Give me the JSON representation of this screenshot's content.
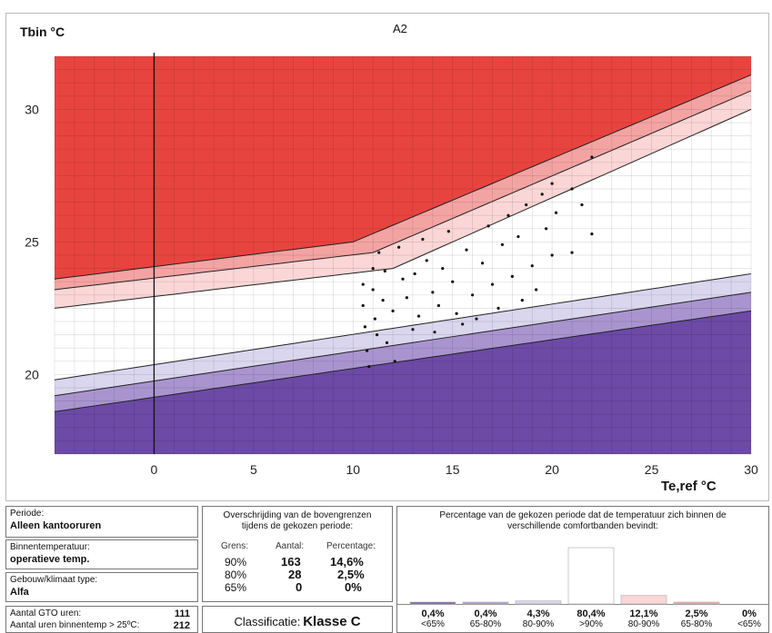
{
  "chart_data": {
    "type": "scatter",
    "title": "A2",
    "ylabel": "Tbin °C",
    "xlabel": "Te,ref °C",
    "xlim": [
      -5,
      30
    ],
    "ylim": [
      17,
      32
    ],
    "xticks": [
      0,
      5,
      10,
      15,
      20,
      25,
      30
    ],
    "xtick_labels": [
      "0",
      "5",
      "10",
      "15",
      "20",
      "25",
      "30"
    ],
    "yticks": [
      20,
      25,
      30
    ],
    "grid": true,
    "comfort_band_lines": {
      "upper": [
        {
          "name": "65%",
          "points": [
            [
              -5,
              23.6
            ],
            [
              10,
              25.0
            ],
            [
              30,
              31.3
            ]
          ]
        },
        {
          "name": "80%",
          "points": [
            [
              -5,
              23.2
            ],
            [
              11,
              24.6
            ],
            [
              30,
              30.7
            ]
          ]
        },
        {
          "name": "90%",
          "points": [
            [
              -5,
              22.5
            ],
            [
              12,
              24.0
            ],
            [
              30,
              30.0
            ]
          ]
        }
      ],
      "lower": [
        {
          "name": "90%",
          "points": [
            [
              -5,
              19.8
            ],
            [
              30,
              23.8
            ]
          ]
        },
        {
          "name": "80%",
          "points": [
            [
              -5,
              19.2
            ],
            [
              30,
              23.1
            ]
          ]
        },
        {
          "name": "65%",
          "points": [
            [
              -5,
              18.6
            ],
            [
              30,
              22.4
            ]
          ]
        }
      ]
    },
    "band_colors": {
      "hot": "#e8443f",
      "hot_80": "#f4a3a3",
      "hot_90": "#fbd6d6",
      "comfort": "#ffffff",
      "cold_90": "#d9d6ee",
      "cold_80": "#a994cf",
      "cold": "#6c4aa6"
    },
    "series": [
      {
        "points": [
          [
            10.5,
            23.4
          ],
          [
            10.5,
            22.6
          ],
          [
            10.6,
            21.8
          ],
          [
            10.7,
            20.9
          ],
          [
            10.8,
            20.3
          ],
          [
            11.0,
            24.0
          ],
          [
            11.0,
            23.2
          ],
          [
            11.1,
            22.1
          ],
          [
            11.2,
            21.5
          ],
          [
            11.3,
            24.6
          ],
          [
            11.5,
            22.8
          ],
          [
            11.6,
            23.9
          ],
          [
            11.7,
            21.2
          ],
          [
            12.0,
            22.4
          ],
          [
            12.1,
            20.5
          ],
          [
            12.3,
            24.8
          ],
          [
            12.5,
            23.6
          ],
          [
            12.7,
            22.9
          ],
          [
            13.0,
            21.7
          ],
          [
            13.1,
            23.8
          ],
          [
            13.3,
            22.2
          ],
          [
            13.5,
            25.1
          ],
          [
            13.7,
            24.3
          ],
          [
            14.0,
            23.1
          ],
          [
            14.1,
            21.6
          ],
          [
            14.3,
            22.6
          ],
          [
            14.5,
            24.0
          ],
          [
            14.8,
            25.4
          ],
          [
            15.0,
            23.5
          ],
          [
            15.2,
            22.3
          ],
          [
            15.5,
            21.9
          ],
          [
            15.7,
            24.7
          ],
          [
            16.0,
            23.0
          ],
          [
            16.2,
            22.1
          ],
          [
            16.5,
            24.2
          ],
          [
            16.8,
            25.6
          ],
          [
            17.0,
            23.4
          ],
          [
            17.3,
            22.5
          ],
          [
            17.5,
            24.9
          ],
          [
            17.8,
            26.0
          ],
          [
            18.0,
            23.7
          ],
          [
            18.3,
            25.2
          ],
          [
            18.5,
            22.8
          ],
          [
            18.7,
            26.4
          ],
          [
            19.0,
            24.1
          ],
          [
            19.2,
            23.2
          ],
          [
            19.5,
            26.8
          ],
          [
            19.7,
            25.5
          ],
          [
            20.0,
            27.2
          ],
          [
            20.0,
            24.5
          ],
          [
            20.2,
            26.1
          ],
          [
            21.0,
            27.0
          ],
          [
            21.0,
            24.6
          ],
          [
            21.5,
            26.4
          ],
          [
            22.0,
            28.2
          ],
          [
            22.0,
            25.3
          ]
        ]
      }
    ]
  },
  "bottom": {
    "periode": {
      "label": "Periode:",
      "value": "Alleen kantooruren"
    },
    "binnen": {
      "label": "Binnentemperatuur:",
      "value": "operatieve temp."
    },
    "gebouw": {
      "label": "Gebouw/klimaat type:",
      "value": "Alfa"
    },
    "gto": {
      "label": "Aantal GTO uren:",
      "value": "111"
    },
    "uren25": {
      "label": "Aantal uren binnentemp > 25ºC:",
      "value": "212"
    },
    "overschrijding": {
      "title": "Overschrijding van de bovengrenzen tijdens de gekozen periode:",
      "headers": [
        "Grens:",
        "Aantal:",
        "Percentage:"
      ],
      "rows": [
        {
          "grens": "90%",
          "aantal": "163",
          "pct": "14,6%"
        },
        {
          "grens": "80%",
          "aantal": "28",
          "pct": "2,5%"
        },
        {
          "grens": "65%",
          "aantal": "0",
          "pct": "0%"
        }
      ]
    },
    "classificatie": {
      "label": "Classificatie:",
      "value": "Klasse C"
    },
    "percentage": {
      "title": "Percentage van de gekozen periode dat de temperatuur zich binnen de verschillende comfortbanden bevindt:",
      "bars": [
        {
          "value": "0,4%",
          "label": "<65%",
          "frac": 0.004,
          "color": "#6c4aa6"
        },
        {
          "value": "0,4%",
          "label": "65-80%",
          "frac": 0.004,
          "color": "#a994cf"
        },
        {
          "value": "4,3%",
          "label": "80-90%",
          "frac": 0.043,
          "color": "#d9d6ee"
        },
        {
          "value": "80,4%",
          "label": ">90%",
          "frac": 0.804,
          "color": "#ffffff"
        },
        {
          "value": "12,1%",
          "label": "80-90%",
          "frac": 0.121,
          "color": "#fbd6d6"
        },
        {
          "value": "2,5%",
          "label": "65-80%",
          "frac": 0.025,
          "color": "#f4a3a3"
        },
        {
          "value": "0%",
          "label": "<65%",
          "frac": 0.0,
          "color": "#e8443f"
        }
      ]
    }
  }
}
